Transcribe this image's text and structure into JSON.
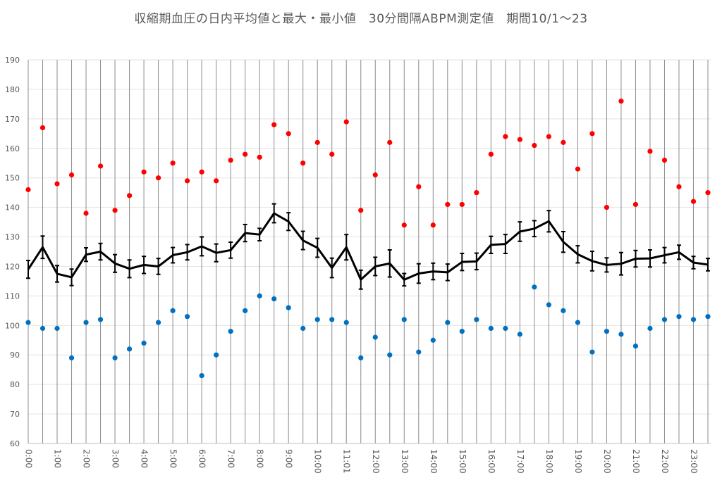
{
  "chart_data": {
    "type": "line",
    "title": "収縮期血圧の日内平均値と最大・最小値　30分間隔ABPM測定値　期間10/1～23",
    "xlabel": "",
    "ylabel": "",
    "ylim": [
      60,
      190
    ],
    "yticks": [
      60,
      70,
      80,
      90,
      100,
      110,
      120,
      130,
      140,
      150,
      160,
      170,
      180,
      190
    ],
    "grid": true,
    "x": [
      "0:00",
      "0:30",
      "1:00",
      "1:30",
      "2:00",
      "2:30",
      "3:00",
      "3:30",
      "4:00",
      "4:30",
      "5:00",
      "5:30",
      "6:00",
      "6:30",
      "7:00",
      "7:30",
      "8:00",
      "8:30",
      "9:00",
      "9:30",
      "10:00",
      "10:30",
      "11:01",
      "11:30",
      "12:00",
      "12:30",
      "13:00",
      "13:30",
      "14:00",
      "14:30",
      "15:00",
      "15:30",
      "16:00",
      "16:30",
      "17:00",
      "17:30",
      "18:00",
      "18:30",
      "19:00",
      "19:30",
      "20:00",
      "20:30",
      "21:00",
      "21:30",
      "22:00",
      "22:30",
      "23:00",
      "23:30"
    ],
    "xtick_labels": [
      "0:00",
      "1:00",
      "2:00",
      "3:00",
      "4:00",
      "5:00",
      "6:00",
      "7:00",
      "8:00",
      "9:00",
      "10:00",
      "11:01",
      "12:00",
      "13:00",
      "14:00",
      "15:00",
      "16:00",
      "17:00",
      "18:00",
      "19:00",
      "20:00",
      "21:00",
      "22:00",
      "23:00"
    ],
    "series": [
      {
        "name": "mean",
        "color": "#000000",
        "style": "line-errorbars",
        "values": [
          119,
          126.5,
          117.5,
          116.3,
          124,
          125,
          121,
          119.2,
          120.5,
          120,
          123.8,
          124.8,
          126.8,
          124.6,
          125.5,
          131.3,
          130.8,
          138,
          135.2,
          128.8,
          126.3,
          119.5,
          126.5,
          115.5,
          120,
          121,
          115.5,
          117.6,
          118.3,
          118,
          121.5,
          121.7,
          127.3,
          127.6,
          131.8,
          132.8,
          135.3,
          128.3,
          124.1,
          121.8,
          120.5,
          120.9,
          122.6,
          122.7,
          123.8,
          124.8,
          121.3,
          120.6
        ],
        "errors": [
          3,
          3.8,
          2.8,
          2.8,
          2.3,
          2.8,
          3,
          3,
          2.9,
          2.7,
          2.6,
          2.6,
          3.2,
          3,
          2.7,
          2.9,
          2.1,
          3.2,
          3,
          3.1,
          3.2,
          3.3,
          4.3,
          3.2,
          3.1,
          4.6,
          2.1,
          3.3,
          2.8,
          2.8,
          2.9,
          2.8,
          2.9,
          3.2,
          3.3,
          2.7,
          3.6,
          3.5,
          2.9,
          3.3,
          2.4,
          3.8,
          2.8,
          2.9,
          2.6,
          2.4,
          2.1,
          2.1
        ]
      },
      {
        "name": "max",
        "color": "#ff0000",
        "style": "marker",
        "values": [
          146,
          167,
          148,
          151,
          138,
          154,
          139,
          144,
          152,
          150,
          155,
          149,
          152,
          149,
          156,
          158,
          157,
          168,
          165,
          155,
          162,
          158,
          169,
          139,
          151,
          162,
          134,
          147,
          134,
          141,
          141,
          145,
          158,
          164,
          163,
          161,
          164,
          162,
          153,
          165,
          140,
          176,
          141,
          159,
          156,
          147,
          142,
          145
        ]
      },
      {
        "name": "min",
        "color": "#0070c0",
        "style": "marker",
        "values": [
          101,
          99,
          99,
          89,
          101,
          102,
          89,
          92,
          94,
          101,
          105,
          103,
          83,
          90,
          98,
          105,
          110,
          109,
          106,
          99,
          102,
          102,
          101,
          89,
          96,
          90,
          102,
          91,
          95,
          101,
          98,
          102,
          99,
          99,
          97,
          113,
          107,
          105,
          101,
          91,
          98,
          97,
          93,
          99,
          102,
          103,
          102,
          103
        ]
      }
    ]
  }
}
